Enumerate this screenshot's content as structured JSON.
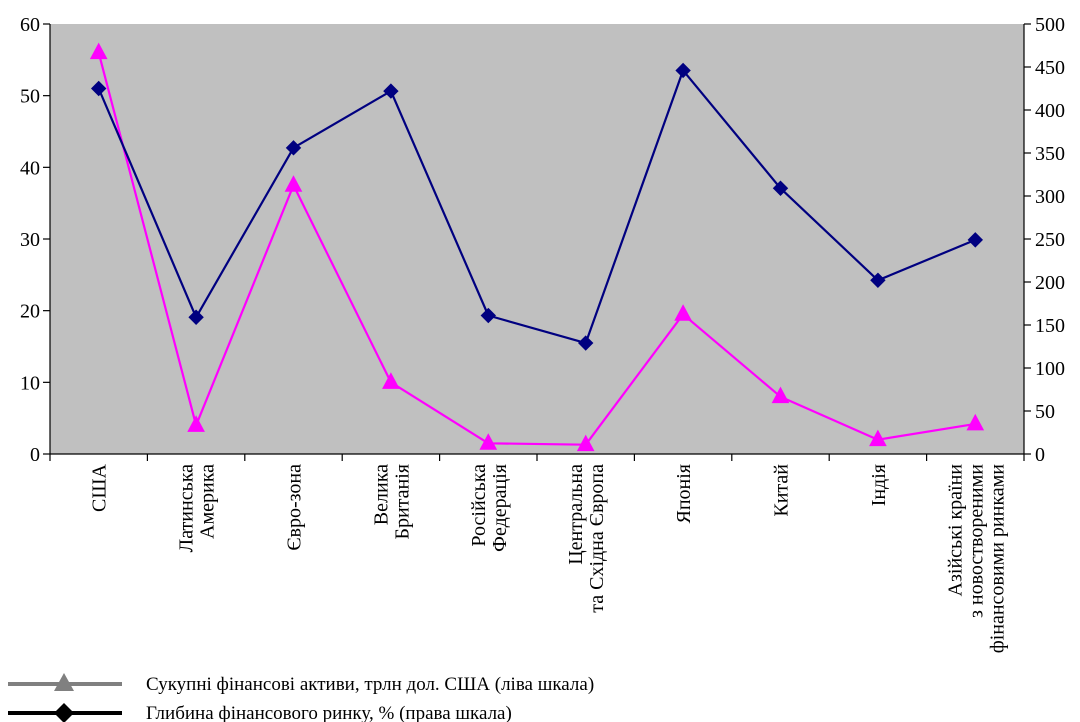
{
  "chart_data": {
    "type": "line",
    "categories": [
      [
        "США"
      ],
      [
        "Латинська",
        "Америка"
      ],
      [
        "Євро-зона"
      ],
      [
        "Велика",
        "Британія"
      ],
      [
        "Російська",
        "Федерація"
      ],
      [
        "Центральна",
        "та Східна Європа"
      ],
      [
        "Японія"
      ],
      [
        "Китай"
      ],
      [
        "Індія"
      ],
      [
        "Азійські країни",
        "з новоствореними",
        "фінансовими ринками"
      ]
    ],
    "y_left": {
      "min": 0,
      "max": 60,
      "ticks": [
        "0",
        "10",
        "20",
        "30",
        "40",
        "50",
        "60"
      ]
    },
    "y_right": {
      "min": 0,
      "max": 500,
      "ticks": [
        "0",
        "50",
        "100",
        "150",
        "200",
        "250",
        "300",
        "350",
        "400",
        "450",
        "500"
      ]
    },
    "plot_background": "#c0c0c0",
    "series": [
      {
        "name": "Сукупні фінансові активи, трлн дол. США (ліва шкала)",
        "axis": "left",
        "marker": "triangle",
        "color": "#ff00ff",
        "legend_color": "#808080",
        "values": [
          56,
          4,
          37.5,
          10,
          1.5,
          1.3,
          19.5,
          8,
          2,
          4.2
        ]
      },
      {
        "name": "Глибина фінансового ринку, % (права шкала)",
        "axis": "right",
        "marker": "diamond",
        "color": "#000080",
        "legend_color": "#000000",
        "values": [
          425,
          159,
          356,
          422,
          161,
          129,
          446,
          309,
          202,
          249
        ]
      }
    ]
  }
}
